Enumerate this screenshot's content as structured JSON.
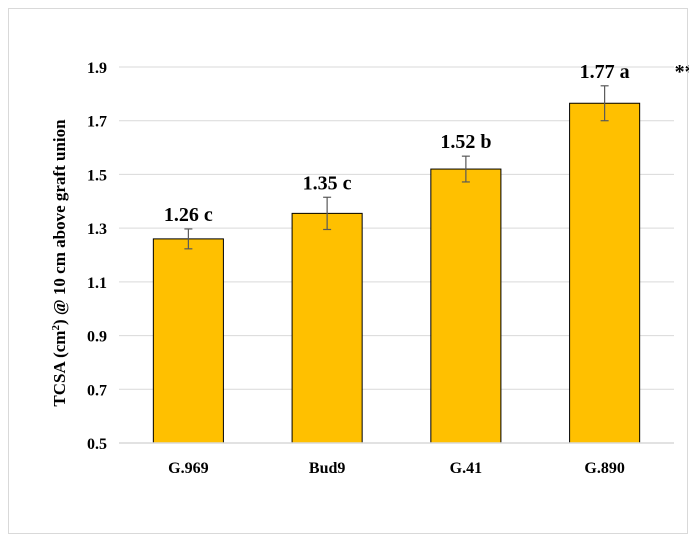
{
  "chart_data": {
    "type": "bar",
    "title": "",
    "xlabel": "",
    "ylabel_parts": [
      "TCSA (cm",
      "2",
      ") @ 10 cm above graft union"
    ],
    "categories": [
      "G.969",
      "Bud9",
      "G.41",
      "G.890"
    ],
    "values": [
      1.26,
      1.355,
      1.52,
      1.765
    ],
    "errors": [
      0.037,
      0.06,
      0.048,
      0.065
    ],
    "value_labels": [
      "1.26 c",
      "1.35 c",
      "1.52 b",
      "1.77 a"
    ],
    "significance": "***",
    "ylim": [
      0.5,
      1.9
    ],
    "yticks": [
      "0.5",
      "0.7",
      "0.9",
      "1.1",
      "1.3",
      "1.5",
      "1.7",
      "1.9"
    ],
    "grid": true,
    "legend": "none",
    "colors": {
      "bar_fill": "#FFC000",
      "bar_stroke": "#000000",
      "grid": "#d9d9d9",
      "error_bar": "#595959"
    }
  }
}
